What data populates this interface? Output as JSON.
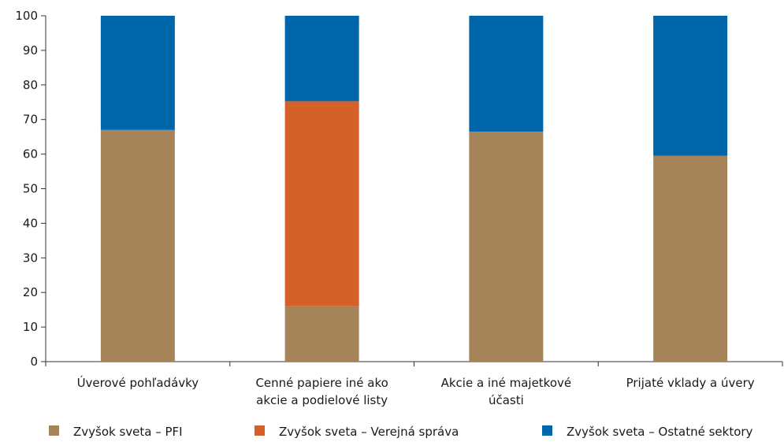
{
  "chart_data": {
    "type": "bar",
    "stacked": true,
    "categories": [
      [
        "Úverové pohľadávky"
      ],
      [
        "Cenné  papiere iné ako",
        "akcie a podielové listy"
      ],
      [
        "Akcie a iné majetkové",
        "účasti"
      ],
      [
        "Prijaté vklady a úvery"
      ]
    ],
    "series": [
      {
        "name": "Zvyšok sveta – PFI",
        "color": "#a6845a",
        "values": [
          67,
          16,
          66.5,
          59.5
        ]
      },
      {
        "name": "Zvyšok sveta – Verejná správa",
        "color": "#d4602a",
        "values": [
          0,
          59.3,
          0,
          0
        ]
      },
      {
        "name": "Zvyšok sveta – Ostatné sektory",
        "color": "#0066aa",
        "values": [
          33,
          24.7,
          33.5,
          40.5
        ]
      }
    ],
    "ylim": [
      0,
      100
    ],
    "yticks": [
      0,
      10,
      20,
      30,
      40,
      50,
      60,
      70,
      80,
      90,
      100
    ],
    "title": "",
    "xlabel": "",
    "ylabel": "",
    "grid": false,
    "legend_position": "bottom"
  }
}
